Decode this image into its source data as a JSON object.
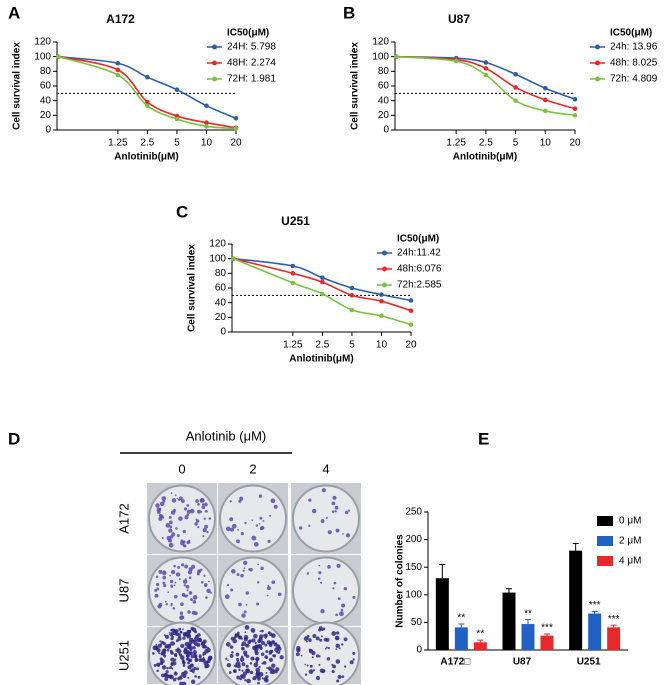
{
  "chart_data": [
    {
      "panel": "A",
      "type": "line",
      "title": "A172",
      "xlabel": "Anlotinib(μM)",
      "ylabel": "Cell survival index",
      "log_x": true,
      "x": [
        0.31,
        1.25,
        2.5,
        5,
        10,
        20
      ],
      "xlim": [
        0.3,
        20
      ],
      "xticks": [
        1.25,
        2.5,
        5,
        10,
        20
      ],
      "ylim": [
        0,
        120
      ],
      "yticks": [
        0,
        20,
        40,
        60,
        80,
        100,
        120
      ],
      "hline": 50,
      "legend_title": "IC50(μM)",
      "series": [
        {
          "name": "24H:  5.798",
          "color": "#2f5ea8",
          "values": [
            100,
            91,
            72,
            55,
            33,
            16
          ]
        },
        {
          "name": "48H:  2.274",
          "color": "#e8292b",
          "values": [
            100,
            82,
            38,
            19,
            10,
            3
          ]
        },
        {
          "name": "72H:  1.981",
          "color": "#7cc242",
          "values": [
            100,
            75,
            33,
            15,
            5,
            2
          ]
        }
      ]
    },
    {
      "panel": "B",
      "type": "line",
      "title": "U87",
      "xlabel": "Anlotinib(μM)",
      "ylabel": "Cell survival index",
      "log_x": true,
      "x": [
        0.31,
        1.25,
        2.5,
        5,
        10,
        20
      ],
      "xlim": [
        0.3,
        20
      ],
      "xticks": [
        1.25,
        2.5,
        5,
        10,
        20
      ],
      "ylim": [
        0,
        120
      ],
      "yticks": [
        0,
        20,
        40,
        60,
        80,
        100,
        120
      ],
      "hline": 50,
      "legend_title": "IC50(μM)",
      "series": [
        {
          "name": "24h: 13.96",
          "color": "#2f5ea8",
          "values": [
            100,
            98,
            92,
            76,
            57,
            42
          ]
        },
        {
          "name": "48h: 8.025",
          "color": "#e8292b",
          "values": [
            100,
            96,
            84,
            58,
            41,
            29
          ]
        },
        {
          "name": "72h: 4.809",
          "color": "#7cc242",
          "values": [
            100,
            94,
            75,
            40,
            26,
            20
          ]
        }
      ]
    },
    {
      "panel": "C",
      "type": "line",
      "title": "U251",
      "xlabel": "Anlotinib(μM)",
      "ylabel": "Cell survival index",
      "log_x": true,
      "x": [
        0.31,
        1.25,
        2.5,
        5,
        10,
        20
      ],
      "xlim": [
        0.3,
        20
      ],
      "xticks": [
        1.25,
        2.5,
        5,
        10,
        20
      ],
      "ylim": [
        0,
        120
      ],
      "yticks": [
        0,
        20,
        40,
        60,
        80,
        100,
        120
      ],
      "hline": 50,
      "legend_title": "IC50(μM)",
      "series": [
        {
          "name": "24h:11.42",
          "color": "#2f5ea8",
          "values": [
            100,
            90,
            74,
            60,
            51,
            43
          ]
        },
        {
          "name": "48h:6.076",
          "color": "#e8292b",
          "values": [
            100,
            80,
            68,
            50,
            42,
            29
          ]
        },
        {
          "name": "72h:2.585",
          "color": "#7cc242",
          "values": [
            100,
            67,
            52,
            30,
            22,
            10
          ]
        }
      ]
    },
    {
      "panel": "E",
      "type": "bar",
      "ylabel": "Number of colonies",
      "categories": [
        "A172□",
        "U87",
        "U251"
      ],
      "ylim": [
        0,
        250
      ],
      "yticks": [
        0,
        50,
        100,
        150,
        200,
        250
      ],
      "series": [
        {
          "name": "0 μM",
          "color": "#000000",
          "values": [
            130,
            104,
            180
          ],
          "errors": [
            25,
            7,
            13
          ]
        },
        {
          "name": "2 μM",
          "color": "#2160c4",
          "values": [
            41,
            47,
            66
          ],
          "errors": [
            6,
            8,
            4
          ],
          "significance": [
            "**",
            "**",
            "***"
          ]
        },
        {
          "name": "4 μM",
          "color": "#e8292b",
          "values": [
            14,
            26,
            41
          ],
          "errors": [
            4,
            3,
            4
          ],
          "significance": [
            "**",
            "***",
            "***"
          ]
        }
      ]
    }
  ],
  "colony_assay": {
    "panel": "D",
    "title": "Anlotinib (μM)",
    "columns": [
      "0",
      "2",
      "4"
    ],
    "rows": [
      "A172",
      "U87",
      "U251"
    ]
  }
}
